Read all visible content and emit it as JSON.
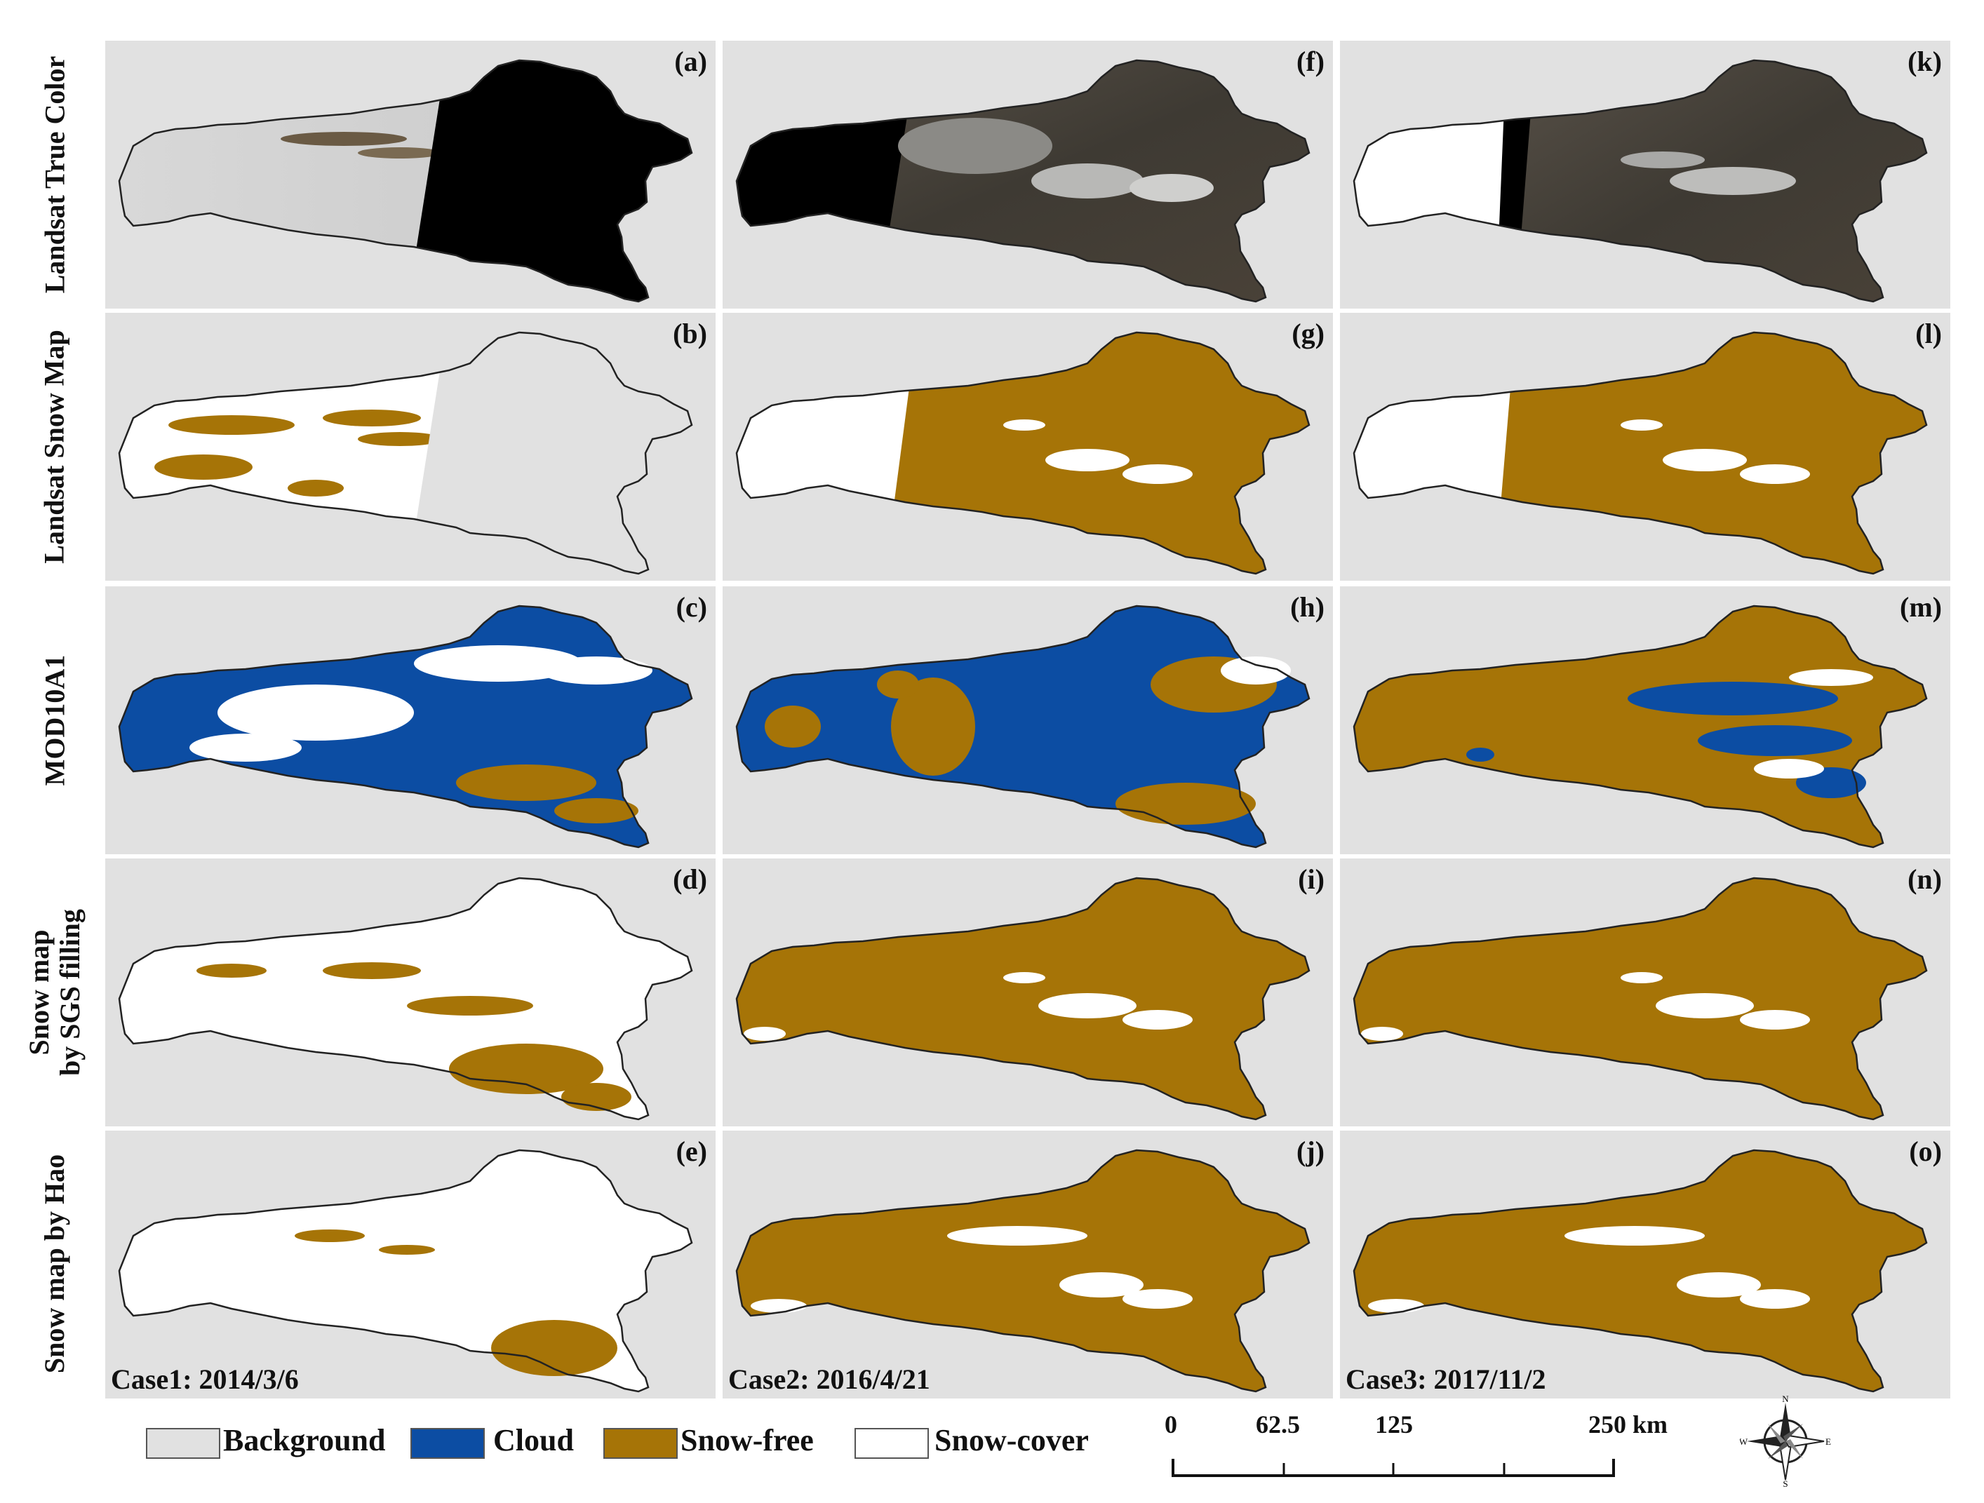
{
  "row_labels": [
    [
      "Landsat True Color"
    ],
    [
      "Landsat Snow Map"
    ],
    [
      "MOD10A1"
    ],
    [
      "Snow map",
      "by SGS filling"
    ],
    [
      "Snow map by Hao"
    ]
  ],
  "panel_letters": [
    [
      "(a)",
      "(b)",
      "(c)",
      "(d)",
      "(e)"
    ],
    [
      "(f)",
      "(g)",
      "(h)",
      "(i)",
      "(j)"
    ],
    [
      "(k)",
      "(l)",
      "(m)",
      "(n)",
      "(o)"
    ]
  ],
  "case_labels": [
    "Case1: 2014/3/6",
    "Case2: 2016/4/21",
    "Case3: 2017/11/2"
  ],
  "legend": [
    {
      "label": "Background",
      "color": "#e1e1e1"
    },
    {
      "label": "Cloud",
      "color": "#0c4da3"
    },
    {
      "label": "Snow-free",
      "color": "#a67407"
    },
    {
      "label": "Snow-cover",
      "color": "#ffffff"
    }
  ],
  "scale_bar": {
    "ticks": [
      "0",
      "62.5",
      "125",
      "250 km"
    ]
  },
  "compass": {
    "n": "N",
    "s": "S",
    "e": "E",
    "w": "W"
  },
  "colors": {
    "snow_free": "#a67407",
    "cloud": "#0c4da3",
    "snow": "#ffffff",
    "background": "#e1e1e1",
    "nodata": "#000000"
  }
}
